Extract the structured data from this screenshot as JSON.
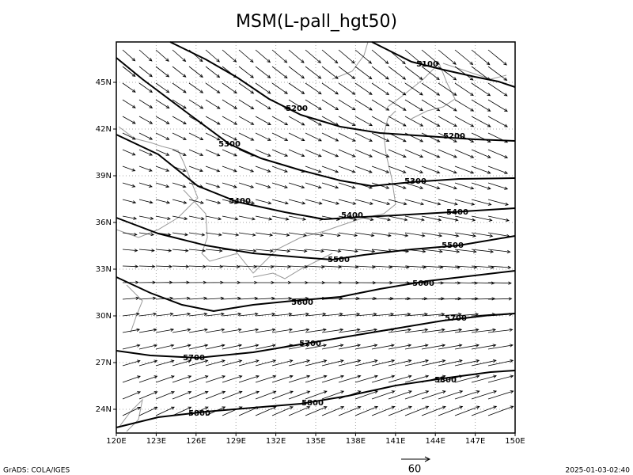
{
  "title": "MSM(L-pall_hgt50)",
  "lon_labels": [
    "120E",
    "123E",
    "126E",
    "129E",
    "132E",
    "135E",
    "138E",
    "141E",
    "144E",
    "147E",
    "150E"
  ],
  "lat_labels": [
    "24N",
    "27N",
    "30N",
    "33N",
    "36N",
    "39N",
    "42N",
    "45N"
  ],
  "contour_labels": [
    "5100",
    "5200",
    "5200",
    "5300",
    "5300",
    "5400",
    "5400",
    "5400",
    "5500",
    "5500",
    "5600",
    "5600",
    "5700",
    "5700",
    "5700",
    "5800",
    "5800",
    "5800"
  ],
  "vector_scale": "60",
  "footer_left": "GrADS: COLA/IGES",
  "footer_right": "2025-01-03-02:40"
}
